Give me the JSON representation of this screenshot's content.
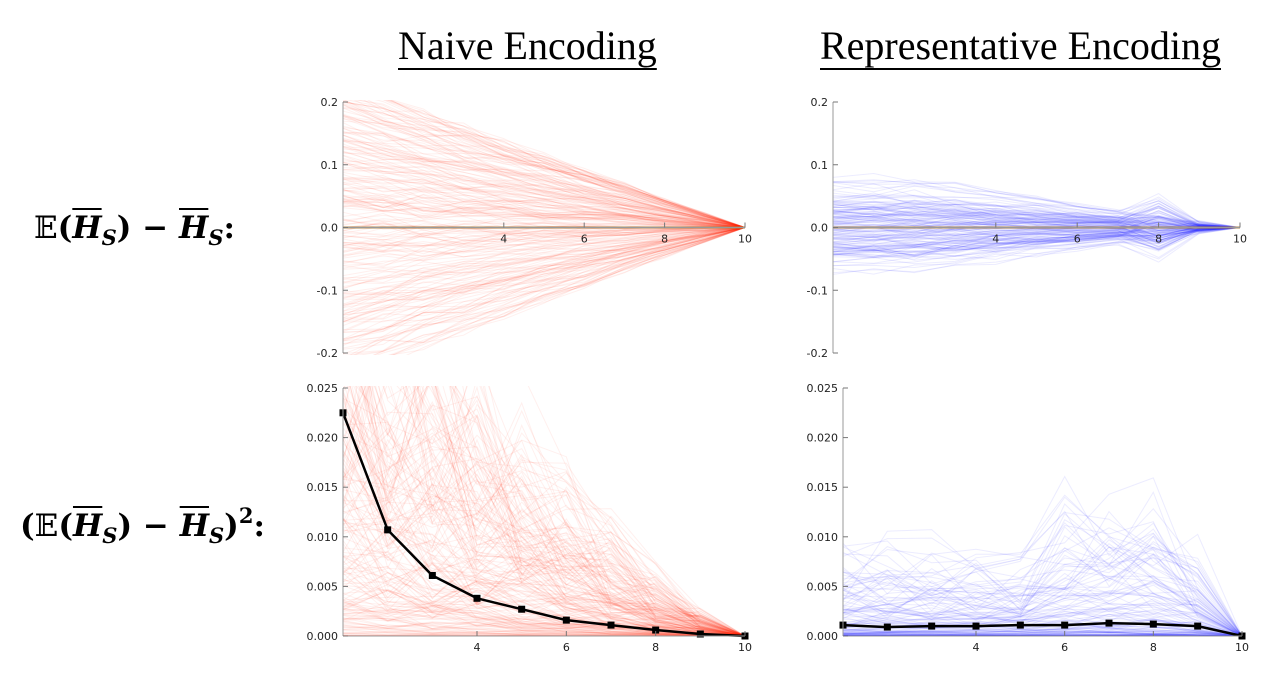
{
  "column_titles": {
    "left": "Naive Encoding",
    "right": "Representative Encoding"
  },
  "row_labels": {
    "top": {
      "bb": "𝔼",
      "H": "H",
      "sub": "S"
    },
    "bottom": {
      "bb": "𝔼",
      "H": "H",
      "sub": "S",
      "sup": "2"
    }
  },
  "colors": {
    "naive": "#ff2a10",
    "representative": "#2a2aff",
    "zero_line": "#b08850",
    "mean_line": "#000000"
  },
  "chart_data": [
    {
      "id": "naive-difference",
      "type": "line",
      "title": "",
      "xlabel": "",
      "ylabel": "",
      "xlim": [
        0,
        10
      ],
      "ylim": [
        -0.2,
        0.2
      ],
      "xticks": [
        4,
        6,
        8,
        10
      ],
      "yticks": [
        0.2,
        0.1,
        0.0,
        -0.1,
        -0.2
      ],
      "ytick_labels": [
        "0.2",
        "0.1",
        "0.0",
        "-0.1",
        "-0.2"
      ],
      "series": [
        {
          "x": [
            0,
            10
          ],
          "y": [
            0,
            0
          ],
          "style": "zero-line"
        }
      ],
      "trajectories": {
        "count": 240,
        "spread_at_x0": 0.2,
        "spread_at_x10": 0.0,
        "color": "naive"
      },
      "grid": false
    },
    {
      "id": "representative-difference",
      "type": "line",
      "title": "",
      "xlabel": "",
      "ylabel": "",
      "xlim": [
        0,
        10
      ],
      "ylim": [
        -0.2,
        0.2
      ],
      "xticks": [
        4,
        6,
        8,
        10
      ],
      "yticks": [
        0.2,
        0.1,
        0.0,
        -0.1,
        -0.2
      ],
      "ytick_labels": [
        "0.2",
        "0.1",
        "0.0",
        "-0.1",
        "-0.2"
      ],
      "series": [
        {
          "x": [
            0,
            10
          ],
          "y": [
            0,
            0
          ],
          "style": "zero-line"
        }
      ],
      "trajectories": {
        "count": 160,
        "spread_at_x0": 0.08,
        "spread_at_x10": 0.0,
        "color": "representative"
      },
      "grid": false
    },
    {
      "id": "naive-squared",
      "type": "line",
      "title": "",
      "xlabel": "",
      "ylabel": "",
      "xlim": [
        1,
        10
      ],
      "ylim": [
        0,
        0.025
      ],
      "xticks": [
        4,
        6,
        8,
        10
      ],
      "yticks": [
        0.025,
        0.02,
        0.015,
        0.01,
        0.005,
        0.0
      ],
      "ytick_labels": [
        "0.025",
        "0.020",
        "0.015",
        "0.010",
        "0.005",
        "0.000"
      ],
      "series": [
        {
          "x": [
            1,
            2,
            3,
            4,
            5,
            6,
            7,
            8,
            9,
            10
          ],
          "y": [
            0.0225,
            0.0107,
            0.0061,
            0.0038,
            0.0027,
            0.0016,
            0.0011,
            0.0006,
            0.0002,
            0.0
          ],
          "style": "mean-markers"
        }
      ],
      "trajectories": {
        "count": 220,
        "max_at_x1": 0.04,
        "color": "naive"
      },
      "grid": false
    },
    {
      "id": "representative-squared",
      "type": "line",
      "title": "",
      "xlabel": "",
      "ylabel": "",
      "xlim": [
        1,
        10
      ],
      "ylim": [
        0,
        0.025
      ],
      "xticks": [
        4,
        6,
        8,
        10
      ],
      "yticks": [
        0.025,
        0.02,
        0.015,
        0.01,
        0.005,
        0.0
      ],
      "ytick_labels": [
        "0.025",
        "0.020",
        "0.015",
        "0.010",
        "0.005",
        "0.000"
      ],
      "series": [
        {
          "x": [
            1,
            2,
            3,
            4,
            5,
            6,
            7,
            8,
            9,
            10
          ],
          "y": [
            0.0011,
            0.0009,
            0.001,
            0.001,
            0.0011,
            0.0011,
            0.0013,
            0.0012,
            0.001,
            0.0
          ],
          "style": "mean-markers"
        }
      ],
      "trajectories": {
        "count": 150,
        "max_at_x1": 0.008,
        "color": "representative"
      },
      "grid": false
    }
  ]
}
